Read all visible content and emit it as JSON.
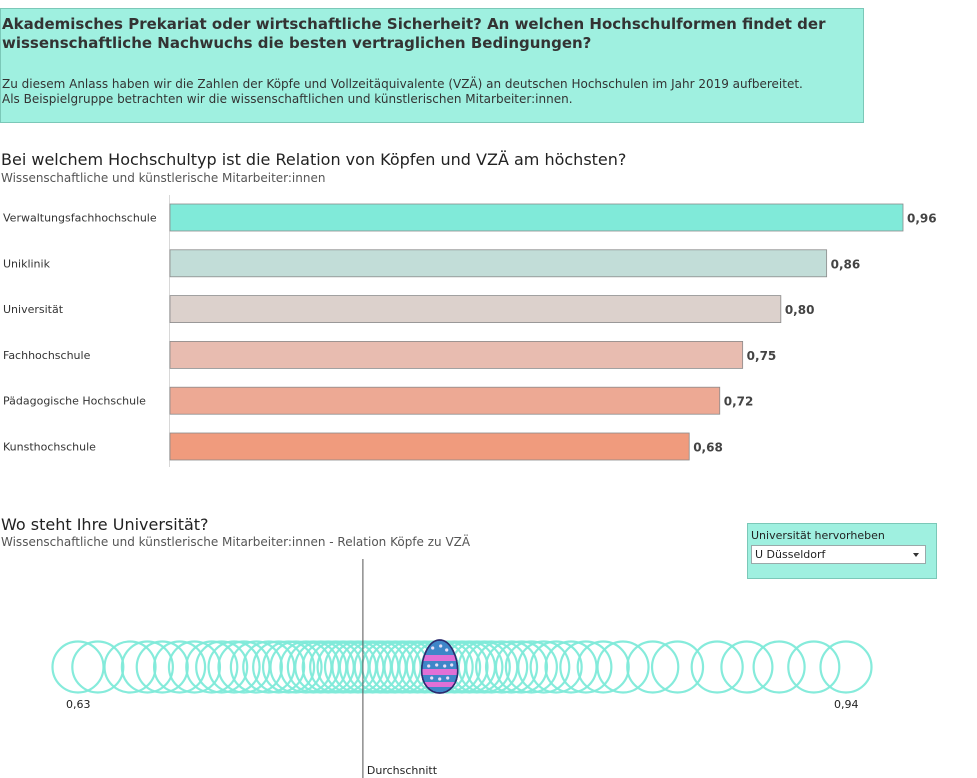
{
  "header": {
    "title": "Akademisches Prekariat oder wirtschaftliche Sicherheit? An welchen Hochschulformen findet der wissenschaftliche Nachwuchs die besten vertraglichen Bedingungen?",
    "intro_line1": "Zu diesem Anlass haben wir die Zahlen der Köpfe und Vollzeitäquivalente (VZÄ) an deutschen Hochschulen im Jahr 2019 aufbereitet.",
    "intro_line2": "Als Beispielgruppe betrachten wir die wissenschaftlichen und künstlerischen Mitarbeiter:innen.",
    "background_color": "#9ff0e0"
  },
  "section1": {
    "title": "Bei welchem Hochschultyp ist die Relation von Köpfen und VZÄ am höchsten?",
    "subtitle": "Wissenschaftliche und künstlerische Mitarbeiter:innen"
  },
  "section2": {
    "title": "Wo steht Ihre Universität?",
    "subtitle": "Wissenschaftliche und künstlerische Mitarbeiter:innen - Relation Köpfe zu VZÄ"
  },
  "filter": {
    "label": "Universität hervorheben",
    "selected": "U Düsseldorf",
    "icon": "chevron-down-icon"
  },
  "chart_data": [
    {
      "type": "bar",
      "orientation": "horizontal",
      "categories": [
        "Verwaltungsfachhochschule",
        "Uniklinik",
        "Universität",
        "Fachhochschule",
        "Pädagogische Hochschule",
        "Kunsthochschule"
      ],
      "values": [
        0.96,
        0.86,
        0.8,
        0.75,
        0.72,
        0.68
      ],
      "value_labels": [
        "0,96",
        "0,86",
        "0,80",
        "0,75",
        "0,72",
        "0,68"
      ],
      "colors": [
        "#80ead9",
        "#c2ddd8",
        "#dcd1cc",
        "#e8bcb0",
        "#eda994",
        "#f09b7d"
      ],
      "xlim": [
        0,
        1
      ]
    },
    {
      "type": "scatter",
      "xlim": [
        0.63,
        0.94
      ],
      "min_label": "0,63",
      "max_label": "0,94",
      "reference_line": {
        "value": 0.745,
        "label": "Durchschnitt"
      },
      "highlight": {
        "name": "U Düsseldorf",
        "value": 0.776,
        "marker": "easter-egg-icon"
      },
      "x": [
        0.63,
        0.638,
        0.651,
        0.658,
        0.664,
        0.671,
        0.677,
        0.684,
        0.688,
        0.693,
        0.697,
        0.702,
        0.707,
        0.711,
        0.715,
        0.718,
        0.722,
        0.725,
        0.728,
        0.731,
        0.734,
        0.737,
        0.74,
        0.743,
        0.746,
        0.749,
        0.752,
        0.755,
        0.758,
        0.761,
        0.764,
        0.767,
        0.77,
        0.773,
        0.776,
        0.779,
        0.782,
        0.785,
        0.788,
        0.791,
        0.794,
        0.797,
        0.801,
        0.805,
        0.809,
        0.813,
        0.818,
        0.823,
        0.829,
        0.835,
        0.842,
        0.85,
        0.862,
        0.872,
        0.888,
        0.9,
        0.913,
        0.927,
        0.94
      ],
      "marker_color": "#80ead9"
    }
  ]
}
